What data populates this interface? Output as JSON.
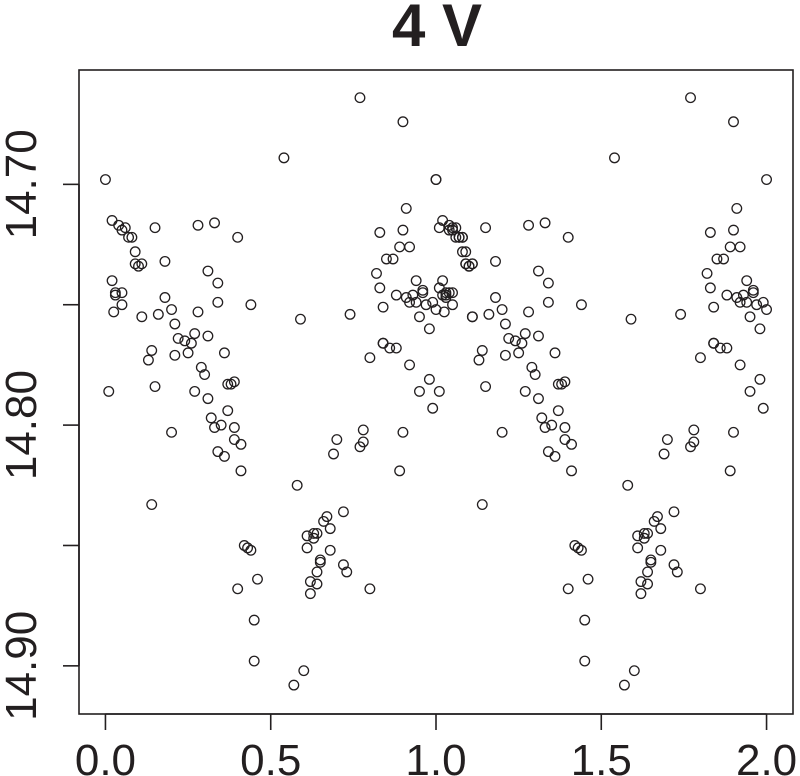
{
  "chart_data": {
    "type": "scatter",
    "title": "4 V",
    "xlabel": "",
    "ylabel": "",
    "xlim": [
      -0.08,
      2.08
    ],
    "ylim": [
      14.92,
      14.6525
    ],
    "y_reversed": true,
    "x_ticks": [
      0.0,
      0.5,
      1.0,
      1.5,
      2.0
    ],
    "x_tick_labels": [
      "0.0",
      "0.5",
      "1.0",
      "1.5",
      "2.0"
    ],
    "y_ticks": [
      14.7,
      14.75,
      14.8,
      14.85,
      14.9
    ],
    "y_tick_labels": [
      "14.70",
      "",
      "14.80",
      "",
      "14.90"
    ],
    "grid": false,
    "legend": "none",
    "colors": {
      "marker": "#231f20",
      "background": "#ffffff"
    },
    "marker": "open-circle",
    "points": [
      [
        0.0,
        14.698
      ],
      [
        0.01,
        14.786
      ],
      [
        0.02,
        14.74
      ],
      [
        0.02,
        14.715
      ],
      [
        0.025,
        14.753
      ],
      [
        0.03,
        14.745
      ],
      [
        0.03,
        14.746
      ],
      [
        0.04,
        14.717
      ],
      [
        0.05,
        14.719
      ],
      [
        0.05,
        14.75
      ],
      [
        0.05,
        14.745
      ],
      [
        0.06,
        14.718
      ],
      [
        0.07,
        14.722
      ],
      [
        0.08,
        14.722
      ],
      [
        0.09,
        14.728
      ],
      [
        0.09,
        14.733
      ],
      [
        0.1,
        14.734
      ],
      [
        0.11,
        14.733
      ],
      [
        0.11,
        14.755
      ],
      [
        0.13,
        14.773
      ],
      [
        0.14,
        14.769
      ],
      [
        0.14,
        14.833
      ],
      [
        0.15,
        14.718
      ],
      [
        0.15,
        14.784
      ],
      [
        0.16,
        14.754
      ],
      [
        0.18,
        14.732
      ],
      [
        0.18,
        14.747
      ],
      [
        0.2,
        14.752
      ],
      [
        0.2,
        14.803
      ],
      [
        0.21,
        14.758
      ],
      [
        0.21,
        14.771
      ],
      [
        0.22,
        14.764
      ],
      [
        0.24,
        14.765
      ],
      [
        0.25,
        14.77
      ],
      [
        0.26,
        14.766
      ],
      [
        0.27,
        14.762
      ],
      [
        0.27,
        14.786
      ],
      [
        0.28,
        14.717
      ],
      [
        0.28,
        14.753
      ],
      [
        0.29,
        14.776
      ],
      [
        0.3,
        14.779
      ],
      [
        0.31,
        14.736
      ],
      [
        0.31,
        14.763
      ],
      [
        0.31,
        14.789
      ],
      [
        0.32,
        14.797
      ],
      [
        0.33,
        14.716
      ],
      [
        0.33,
        14.801
      ],
      [
        0.34,
        14.741
      ],
      [
        0.34,
        14.749
      ],
      [
        0.34,
        14.811
      ],
      [
        0.35,
        14.8
      ],
      [
        0.36,
        14.77
      ],
      [
        0.36,
        14.813
      ],
      [
        0.37,
        14.783
      ],
      [
        0.37,
        14.794
      ],
      [
        0.38,
        14.783
      ],
      [
        0.39,
        14.782
      ],
      [
        0.39,
        14.806
      ],
      [
        0.39,
        14.801
      ],
      [
        0.4,
        14.722
      ],
      [
        0.41,
        14.808
      ],
      [
        0.41,
        14.819
      ],
      [
        0.42,
        14.85
      ],
      [
        0.43,
        14.851
      ],
      [
        0.44,
        14.75
      ],
      [
        0.44,
        14.852
      ],
      [
        0.45,
        14.898
      ],
      [
        0.46,
        14.864
      ],
      [
        0.4,
        14.868
      ],
      [
        0.45,
        14.881
      ],
      [
        0.54,
        14.689
      ],
      [
        0.57,
        14.908
      ],
      [
        0.58,
        14.825
      ],
      [
        0.59,
        14.756
      ],
      [
        0.6,
        14.902
      ],
      [
        0.61,
        14.851
      ],
      [
        0.61,
        14.846
      ],
      [
        0.62,
        14.865
      ],
      [
        0.62,
        14.87
      ],
      [
        0.63,
        14.845
      ],
      [
        0.63,
        14.847
      ],
      [
        0.64,
        14.845
      ],
      [
        0.64,
        14.861
      ],
      [
        0.64,
        14.866
      ],
      [
        0.65,
        14.857
      ],
      [
        0.65,
        14.856
      ],
      [
        0.66,
        14.84
      ],
      [
        0.67,
        14.838
      ],
      [
        0.68,
        14.852
      ],
      [
        0.68,
        14.843
      ],
      [
        0.69,
        14.812
      ],
      [
        0.7,
        14.806
      ],
      [
        0.72,
        14.858
      ],
      [
        0.72,
        14.836
      ],
      [
        0.73,
        14.861
      ],
      [
        0.74,
        14.754
      ],
      [
        0.77,
        14.809
      ],
      [
        0.77,
        14.664
      ],
      [
        0.78,
        14.807
      ],
      [
        0.78,
        14.802
      ],
      [
        0.8,
        14.772
      ],
      [
        0.8,
        14.868
      ],
      [
        0.82,
        14.737
      ],
      [
        0.83,
        14.743
      ],
      [
        0.83,
        14.72
      ],
      [
        0.84,
        14.751
      ],
      [
        0.84,
        14.766
      ],
      [
        0.84,
        14.766
      ],
      [
        0.85,
        14.731
      ],
      [
        0.86,
        14.768
      ],
      [
        0.87,
        14.731
      ],
      [
        0.88,
        14.746
      ],
      [
        0.88,
        14.768
      ],
      [
        0.89,
        14.726
      ],
      [
        0.89,
        14.819
      ],
      [
        0.9,
        14.674
      ],
      [
        0.9,
        14.803
      ],
      [
        0.9,
        14.719
      ],
      [
        0.91,
        14.71
      ],
      [
        0.91,
        14.747
      ],
      [
        0.92,
        14.726
      ],
      [
        0.92,
        14.749
      ],
      [
        0.92,
        14.775
      ],
      [
        0.93,
        14.746
      ],
      [
        0.94,
        14.74
      ],
      [
        0.94,
        14.749
      ],
      [
        0.95,
        14.786
      ],
      [
        0.95,
        14.755
      ],
      [
        0.96,
        14.744
      ],
      [
        0.96,
        14.745
      ],
      [
        0.97,
        14.75
      ],
      [
        0.98,
        14.76
      ],
      [
        0.98,
        14.781
      ],
      [
        0.99,
        14.749
      ],
      [
        0.99,
        14.793
      ],
      [
        1.0,
        14.698
      ],
      [
        1.0,
        14.752
      ],
      [
        1.01,
        14.718
      ],
      [
        1.01,
        14.743
      ],
      [
        1.02,
        14.746
      ],
      [
        1.03,
        14.747
      ],
      [
        1.04,
        14.745
      ],
      [
        1.04,
        14.719
      ],
      [
        1.05,
        14.718
      ],
      [
        1.06,
        14.722
      ],
      [
        1.07,
        14.722
      ],
      [
        1.08,
        14.722
      ],
      [
        1.08,
        14.728
      ],
      [
        1.09,
        14.733
      ],
      [
        1.1,
        14.734
      ],
      [
        1.11,
        14.733
      ],
      [
        1.11,
        14.755
      ]
    ]
  }
}
